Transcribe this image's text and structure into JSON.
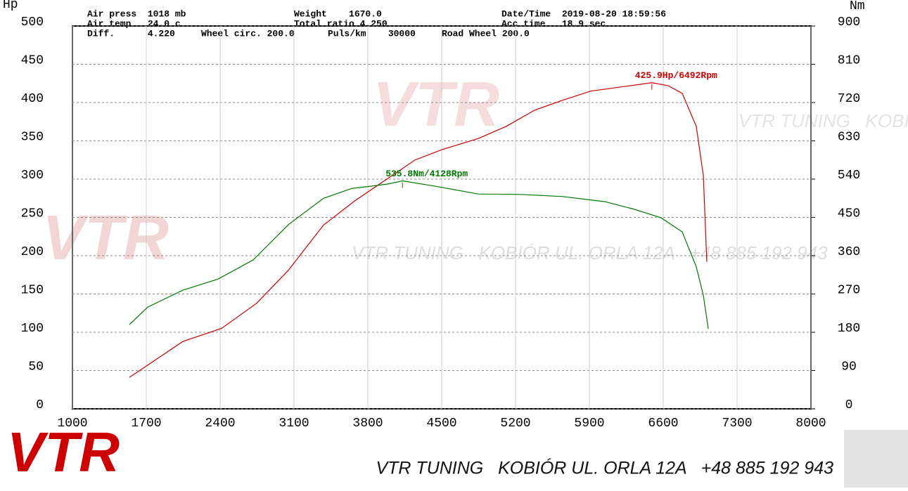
{
  "chart_data": {
    "type": "line",
    "y_label": "Hp",
    "y2_label": "Nm",
    "info": [
      "Air press  1018 mb",
      "Air temp   24.0 c",
      "Diff.      4.220",
      "Wheel circ. 200.0",
      "Puls/km    30000",
      "Road Wheel 200.0",
      "Weight    1670.0",
      "Total ratio 4.250",
      "Date/Time  2019-08-20 18:59:56",
      "Acc time   18.9 sec"
    ],
    "logo": "VTR",
    "watermark": "VTR TUNING   KOBIÓR UL. ORLA 12A   +48 885 192 943",
    "xlim": [
      1000,
      8000
    ],
    "xticks": [
      1000,
      1700,
      2400,
      3100,
      3800,
      4500,
      5200,
      5900,
      6600,
      7300,
      8000
    ],
    "ylim": [
      0,
      500
    ],
    "yticks": [
      0,
      50,
      100,
      150,
      200,
      250,
      300,
      350,
      400,
      450,
      500
    ],
    "y2lim": [
      0,
      900
    ],
    "y2ticks": [
      0,
      90,
      180,
      270,
      360,
      450,
      540,
      630,
      720,
      810,
      900
    ],
    "grid": true,
    "series": [
      {
        "name": "Hp",
        "color": "#cc0000",
        "peak_label": "425.9Hp/6492Rpm",
        "x": [
          1540,
          2047,
          2413,
          2747,
          3047,
          3380,
          3680,
          3980,
          4247,
          4513,
          4847,
          5113,
          5380,
          5647,
          5913,
          6180,
          6492,
          6647,
          6780,
          6913,
          6980,
          7013
        ],
        "values": [
          41,
          88,
          105,
          138,
          181,
          240,
          272,
          300,
          325,
          339,
          353,
          369,
          390,
          403,
          415,
          420,
          425.9,
          422,
          412,
          369,
          305,
          192
        ]
      },
      {
        "name": "Nm",
        "color": "#007700",
        "axis": "y2",
        "peak_label": "535.8Nm/4128Rpm",
        "x": [
          1540,
          1713,
          2047,
          2380,
          2713,
          3047,
          3380,
          3647,
          3980,
          4128,
          4447,
          4847,
          5247,
          5647,
          6047,
          6313,
          6580,
          6780,
          6913,
          6980,
          7027
        ],
        "values": [
          198,
          239,
          279,
          305,
          350,
          433,
          495,
          518,
          528,
          535.8,
          523,
          505,
          504,
          499,
          487,
          470,
          449,
          416,
          334,
          267,
          188
        ]
      }
    ]
  }
}
